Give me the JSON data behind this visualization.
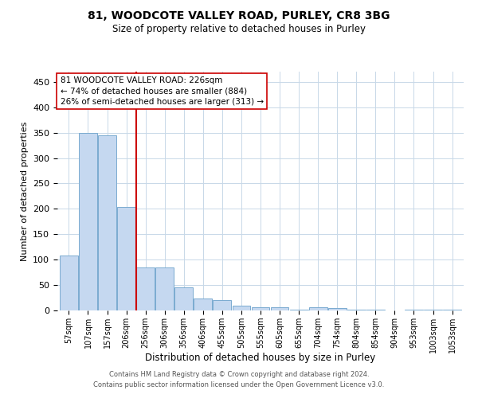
{
  "title1": "81, WOODCOTE VALLEY ROAD, PURLEY, CR8 3BG",
  "title2": "Size of property relative to detached houses in Purley",
  "xlabel": "Distribution of detached houses by size in Purley",
  "ylabel": "Number of detached properties",
  "footer1": "Contains HM Land Registry data © Crown copyright and database right 2024.",
  "footer2": "Contains public sector information licensed under the Open Government Licence v3.0.",
  "bar_labels": [
    "57sqm",
    "107sqm",
    "157sqm",
    "206sqm",
    "256sqm",
    "306sqm",
    "356sqm",
    "406sqm",
    "455sqm",
    "505sqm",
    "555sqm",
    "605sqm",
    "655sqm",
    "704sqm",
    "754sqm",
    "804sqm",
    "854sqm",
    "904sqm",
    "953sqm",
    "1003sqm",
    "1053sqm"
  ],
  "bar_values": [
    108,
    349,
    344,
    203,
    84,
    84,
    46,
    23,
    20,
    10,
    7,
    6,
    2,
    7,
    5,
    2,
    1,
    0,
    2,
    1,
    2
  ],
  "bar_color": "#c5d8f0",
  "bar_edgecolor": "#7aaad0",
  "vline_x": 3.5,
  "vline_color": "#cc0000",
  "annotation_line1": "81 WOODCOTE VALLEY ROAD: 226sqm",
  "annotation_line2": "← 74% of detached houses are smaller (884)",
  "annotation_line3": "26% of semi-detached houses are larger (313) →",
  "annotation_box_color": "#ffffff",
  "annotation_box_edgecolor": "#cc0000",
  "ylim": [
    0,
    470
  ],
  "yticks": [
    0,
    50,
    100,
    150,
    200,
    250,
    300,
    350,
    400,
    450
  ],
  "background_color": "#ffffff",
  "grid_color": "#c8d8e8",
  "title1_fontsize": 10,
  "title2_fontsize": 8.5,
  "ylabel_fontsize": 8,
  "xlabel_fontsize": 8.5,
  "ytick_fontsize": 8,
  "xtick_fontsize": 7,
  "annotation_fontsize": 7.5,
  "footer_fontsize": 6
}
